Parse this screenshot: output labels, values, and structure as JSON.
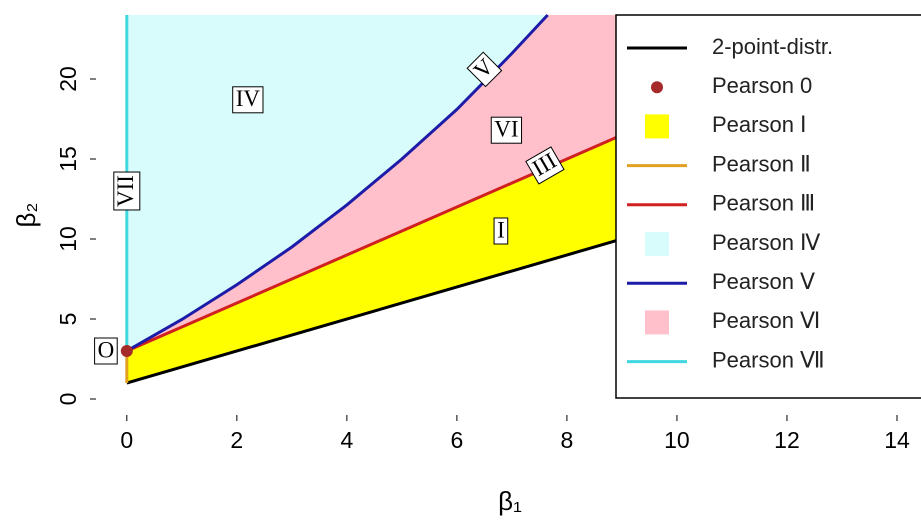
{
  "chart_data": {
    "type": "line",
    "xlabel": "β₁",
    "ylabel": "β₂",
    "xlim": [
      -0.56,
      14.4
    ],
    "ylim": [
      -1,
      24
    ],
    "xticks": [
      0,
      2,
      4,
      6,
      8,
      10,
      12,
      14
    ],
    "yticks": [
      0,
      5,
      10,
      15,
      20
    ],
    "series": [
      {
        "name": "2-point-distr.",
        "kind": "line",
        "color": "#000000",
        "x": [
          0,
          8.9
        ],
        "values": [
          1,
          9.9
        ]
      },
      {
        "name": "Pearson 0",
        "kind": "point",
        "color": "#a52a2a",
        "x": [
          0
        ],
        "values": [
          3
        ]
      },
      {
        "name": "Pearson Ⅰ",
        "kind": "region",
        "color": "#ffff00",
        "x": [
          0,
          8.9,
          8.9,
          0
        ],
        "values": [
          1,
          9.9,
          16.35,
          3
        ]
      },
      {
        "name": "Pearson Ⅱ",
        "kind": "line",
        "color": "#e0a020",
        "x": [
          0,
          0
        ],
        "values": [
          1,
          3
        ]
      },
      {
        "name": "Pearson Ⅲ",
        "kind": "line",
        "color": "#d02020",
        "x": [
          0,
          8.9
        ],
        "values": [
          3,
          16.35
        ]
      },
      {
        "name": "Pearson Ⅳ",
        "kind": "region",
        "color": "#d8fcfc",
        "x": [
          0,
          1,
          2,
          3,
          4,
          5,
          6,
          7,
          7.65,
          0
        ],
        "values": [
          3,
          4.97,
          7.14,
          9.5,
          12.13,
          15,
          18.1,
          21.6,
          24,
          24
        ]
      },
      {
        "name": "Pearson Ⅴ",
        "kind": "line",
        "color": "#1c1ca8",
        "x": [
          0,
          1,
          2,
          3,
          4,
          5,
          6,
          7,
          7.65
        ],
        "values": [
          3,
          4.97,
          7.14,
          9.5,
          12.13,
          15,
          18.1,
          21.6,
          24
        ]
      },
      {
        "name": "Pearson Ⅵ",
        "kind": "region",
        "color": "#ffc0cb",
        "x": [
          0,
          8.9,
          8.9,
          7.65,
          7,
          6,
          5,
          4,
          3,
          2,
          1
        ],
        "values": [
          3,
          16.35,
          24,
          24,
          21.6,
          18.1,
          15,
          12.13,
          9.5,
          7.14,
          4.97
        ]
      },
      {
        "name": "Pearson Ⅶ",
        "kind": "line",
        "color": "#40d8e0",
        "x": [
          0,
          0
        ],
        "values": [
          3,
          24
        ]
      }
    ],
    "annotations": [
      {
        "text": "IV",
        "x": 2.2,
        "y": 18.7,
        "angle": 0
      },
      {
        "text": "V",
        "x": 6.5,
        "y": 20.6,
        "angle": -45
      },
      {
        "text": "VI",
        "x": 6.9,
        "y": 16.8,
        "angle": 0
      },
      {
        "text": "III",
        "x": 7.6,
        "y": 14.6,
        "angle": -30
      },
      {
        "text": "I",
        "x": 6.8,
        "y": 10.5,
        "angle": 0
      },
      {
        "text": "VII",
        "x": 0,
        "y": 13,
        "angle": -90
      },
      {
        "text": "O",
        "x": -0.38,
        "y": 3,
        "angle": 0
      }
    ]
  }
}
